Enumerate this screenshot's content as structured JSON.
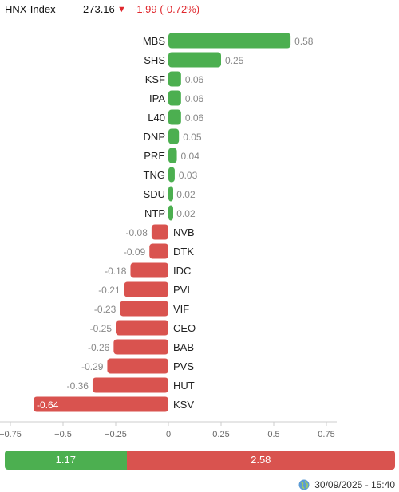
{
  "index": {
    "name": "HNX-Index",
    "value": "273.16",
    "arrow": "▼",
    "change": "-1.99 (-0.72%)",
    "change_color": "#e0282e"
  },
  "colors": {
    "positive": "#4caf50",
    "negative": "#d9534f",
    "label_gray": "#888888",
    "axis": "#666666"
  },
  "chart_data": {
    "type": "bar",
    "orientation": "horizontal",
    "categories": [
      "MBS",
      "SHS",
      "KSF",
      "IPA",
      "L40",
      "DNP",
      "PRE",
      "TNG",
      "SDU",
      "NTP",
      "NVB",
      "DTK",
      "IDC",
      "PVI",
      "VIF",
      "CEO",
      "BAB",
      "PVS",
      "HUT",
      "KSV"
    ],
    "values": [
      0.58,
      0.25,
      0.06,
      0.06,
      0.06,
      0.05,
      0.04,
      0.03,
      0.02,
      0.02,
      -0.08,
      -0.09,
      -0.18,
      -0.21,
      -0.23,
      -0.25,
      -0.26,
      -0.29,
      -0.36,
      -0.64
    ],
    "value_labels": [
      "0.58",
      "0.25",
      "0.06",
      "0.06",
      "0.06",
      "0.05",
      "0.04",
      "0.03",
      "0.02",
      "0.02",
      "-0.08",
      "-0.09",
      "-0.18",
      "-0.21",
      "-0.23",
      "-0.25",
      "-0.26",
      "-0.29",
      "-0.36",
      "-0.64"
    ],
    "xlim": [
      -0.75,
      0.75
    ],
    "xticks": [
      -0.75,
      -0.5,
      -0.25,
      0,
      0.25,
      0.5,
      0.75
    ],
    "xtick_labels": [
      "−0.75",
      "−0.5",
      "−0.25",
      "0",
      "0.25",
      "0.5",
      "0.75"
    ],
    "grid": false,
    "legend": "none"
  },
  "summary": {
    "positive_total": "1.17",
    "negative_total": "2.58"
  },
  "footer": {
    "icon": "globe-icon",
    "timestamp": "30/09/2025 - 15:40"
  }
}
